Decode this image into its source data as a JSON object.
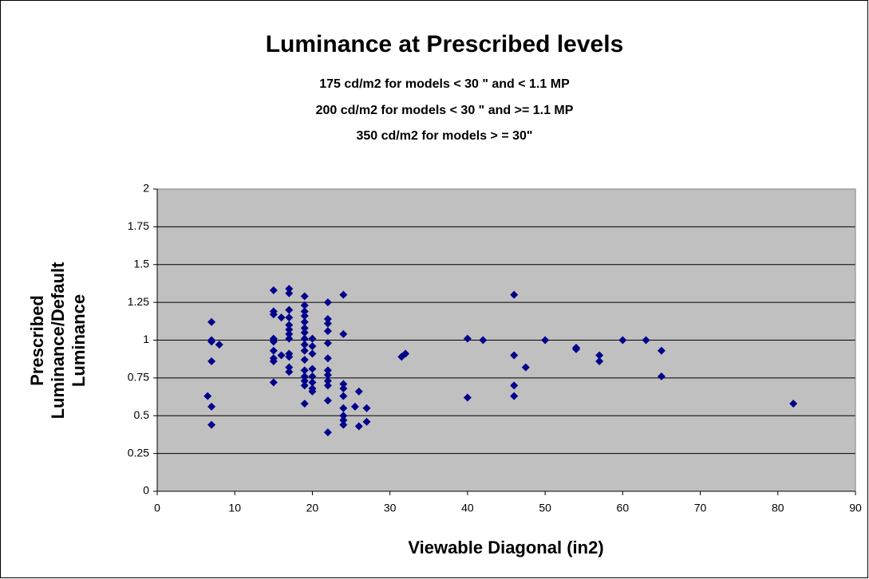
{
  "chart_data": {
    "type": "scatter",
    "title": "Luminance at Prescribed levels",
    "subtitle": [
      "175 cd/m2 for models < 30 \" and < 1.1 MP",
      "200 cd/m2 for models < 30 \" and >= 1.1 MP",
      "350 cd/m2 for models > = 30\""
    ],
    "xlabel": "Viewable Diagonal (in2)",
    "ylabel": [
      "Prescribed",
      "Luminance/Default",
      "Luminance"
    ],
    "color": "#00008b",
    "plot_background": "#c0c0c0",
    "grid": true,
    "xlim": [
      0,
      90
    ],
    "xticks": [
      0,
      10,
      20,
      30,
      40,
      50,
      60,
      70,
      80,
      90
    ],
    "ylim": [
      0,
      2
    ],
    "yticks": [
      0,
      0.25,
      0.5,
      0.75,
      1,
      1.25,
      1.5,
      1.75,
      2
    ],
    "x": [
      6.5,
      7,
      7,
      7,
      7,
      7,
      7,
      8,
      15,
      15,
      15,
      15,
      15,
      15,
      15,
      15,
      15,
      16,
      16,
      17,
      17,
      17,
      17,
      17,
      17,
      17,
      17,
      17,
      17,
      17,
      17,
      19,
      19,
      19,
      19,
      19,
      19,
      19,
      19,
      19,
      19,
      19,
      19,
      19,
      19,
      19,
      19,
      20,
      20,
      20,
      20,
      20,
      20,
      20,
      20,
      22,
      22,
      22,
      22,
      22,
      22,
      22,
      22,
      22,
      22,
      22,
      22,
      24,
      24,
      24,
      24,
      24,
      24,
      24,
      24,
      24,
      25.5,
      26,
      26,
      27,
      27,
      31.5,
      32,
      40,
      40,
      42,
      46,
      46,
      46,
      46,
      47.5,
      50,
      54,
      54,
      57,
      57,
      60,
      63,
      65,
      65,
      82
    ],
    "values": [
      0.63,
      1.12,
      1.0,
      0.99,
      0.86,
      0.56,
      0.44,
      0.97,
      1.33,
      1.19,
      1.17,
      1.01,
      0.99,
      0.93,
      0.88,
      0.86,
      0.72,
      1.15,
      0.9,
      1.34,
      1.31,
      1.2,
      1.15,
      1.1,
      1.07,
      1.04,
      1.01,
      0.91,
      0.89,
      0.82,
      0.79,
      1.29,
      1.23,
      1.19,
      1.16,
      1.12,
      1.08,
      1.05,
      1.01,
      0.97,
      0.93,
      0.87,
      0.8,
      0.76,
      0.73,
      0.7,
      0.58,
      1.01,
      0.96,
      0.91,
      0.81,
      0.76,
      0.72,
      0.68,
      0.66,
      1.25,
      1.14,
      1.11,
      1.06,
      0.98,
      0.88,
      0.8,
      0.77,
      0.73,
      0.7,
      0.6,
      0.39,
      1.3,
      1.04,
      0.71,
      0.68,
      0.63,
      0.55,
      0.5,
      0.47,
      0.44,
      0.56,
      0.66,
      0.43,
      0.55,
      0.46,
      0.89,
      0.91,
      1.01,
      0.62,
      1.0,
      1.3,
      0.9,
      0.7,
      0.63,
      0.82,
      1.0,
      0.95,
      0.94,
      0.9,
      0.86,
      1.0,
      1.0,
      0.93,
      0.76,
      0.58
    ]
  }
}
